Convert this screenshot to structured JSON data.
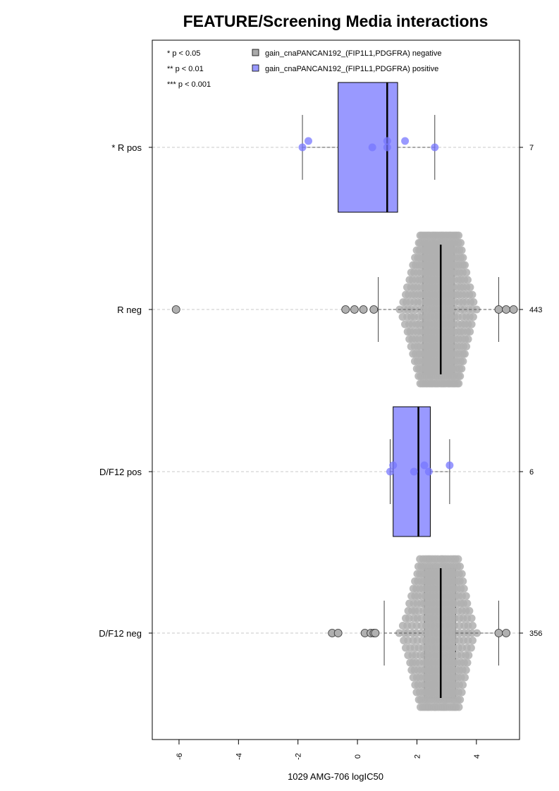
{
  "chart_data": {
    "type": "box",
    "title": "FEATURE/Screening Media interactions",
    "xlabel": "1029 AMG-706 logIC50",
    "xlim": [
      -6.9,
      5.45
    ],
    "xticks": [
      -6,
      -4,
      -2,
      0,
      2,
      4
    ],
    "orientation": "horizontal",
    "significance_legend": [
      "* p < 0.05",
      "** p < 0.01",
      "*** p < 0.001"
    ],
    "legend": [
      {
        "label": "gain_cnaPANCAN192_(FIP1L1,PDGFRA) negative",
        "color": "#aaaaaa"
      },
      {
        "label": "gain_cnaPANCAN192_(FIP1L1,PDGFRA) positive",
        "color": "#9999ff"
      }
    ],
    "groups": [
      {
        "label": "* R pos",
        "n": "7",
        "status": "positive",
        "whisker_low": -1.85,
        "q1": -0.65,
        "median": 1.0,
        "q3": 1.35,
        "whisker_high": 2.6,
        "points": [
          -1.85,
          -1.65,
          0.5,
          1.0,
          1.0,
          1.6,
          2.6
        ],
        "outliers": []
      },
      {
        "label": "R neg",
        "n": "443",
        "status": "negative",
        "whisker_low": 0.7,
        "q1": 2.2,
        "median": 2.8,
        "q3": 3.25,
        "whisker_high": 4.75,
        "outliers_low": [
          -6.1,
          -0.4,
          -0.1,
          0.2,
          0.55
        ],
        "outliers_high": [
          4.75,
          5.0,
          5.25
        ]
      },
      {
        "label": "D/F12 pos",
        "n": "6",
        "status": "positive",
        "whisker_low": 1.1,
        "q1": 1.2,
        "median": 2.05,
        "q3": 2.45,
        "whisker_high": 3.1,
        "points": [
          1.1,
          1.2,
          1.9,
          2.25,
          2.4,
          3.1
        ],
        "outliers": []
      },
      {
        "label": "D/F12 neg",
        "n": "356",
        "status": "negative",
        "whisker_low": 0.9,
        "q1": 2.25,
        "median": 2.8,
        "q3": 3.3,
        "whisker_high": 4.75,
        "outliers_low": [
          -0.85,
          -0.65,
          0.25,
          0.45,
          0.55,
          0.6
        ],
        "outliers_high": [
          4.75,
          5.0
        ]
      }
    ],
    "colors": {
      "negative_box": "#b3b3b3",
      "positive_box": "#9999ff",
      "negative_points": "#b0b0b0",
      "positive_points": "#7777ff",
      "gridline": "#c8c8c8"
    }
  }
}
